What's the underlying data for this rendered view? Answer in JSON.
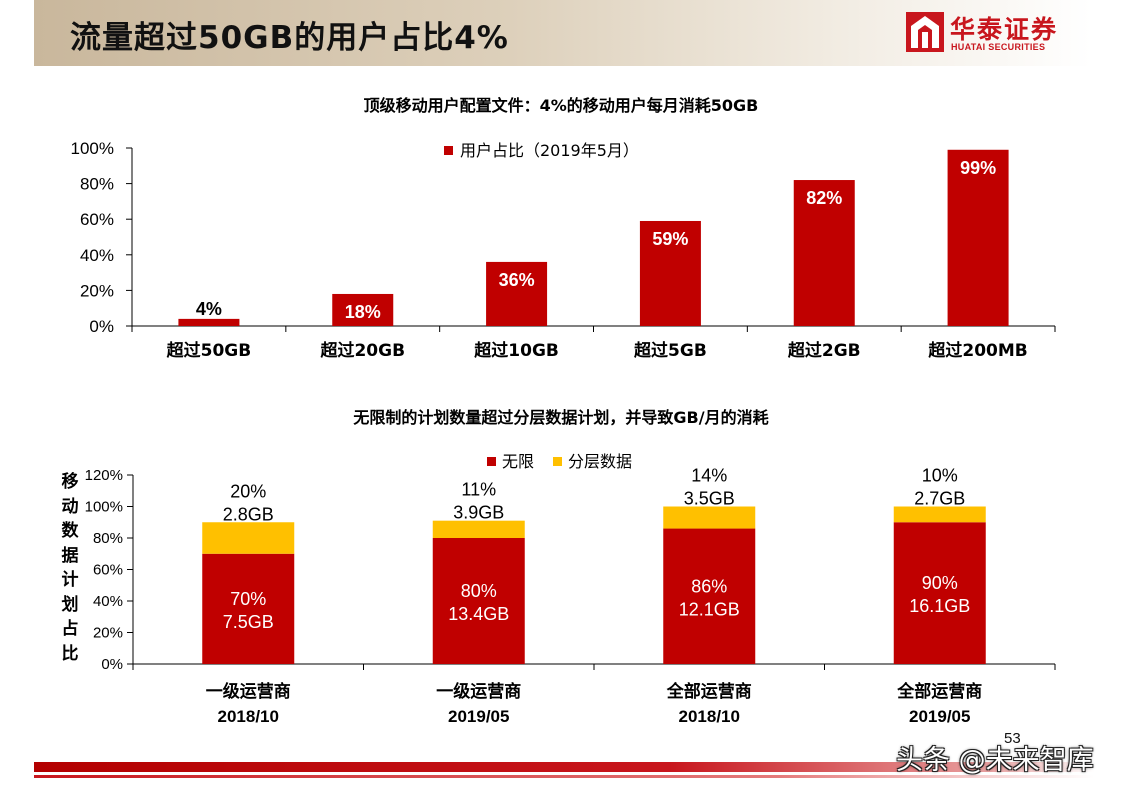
{
  "header": {
    "title": "流量超过50GB的用户占比4%"
  },
  "logo": {
    "name_cn": "华泰证券",
    "name_en": "HUATAI SECURITIES"
  },
  "colors": {
    "red": "#c00000",
    "yellow": "#ffc000",
    "brand": "#c8161d"
  },
  "chart_titles": {
    "top": "顶级移动用户配置文件：4%的移动用户每月消耗50GB",
    "bottom": "无限制的计划数量超过分层数据计划，并导致GB/月的消耗"
  },
  "bottom_ylabel": [
    "移",
    "动",
    "数",
    "据",
    "计",
    "划",
    "占",
    "比"
  ],
  "chart_data": [
    {
      "type": "bar",
      "categories": [
        "超过50GB",
        "超过20GB",
        "超过10GB",
        "超过5GB",
        "超过2GB",
        "超过200MB"
      ],
      "series": [
        {
          "name": "用户占比（2019年5月）",
          "values": [
            4,
            18,
            36,
            59,
            82,
            99
          ]
        }
      ],
      "data_labels": [
        "4%",
        "18%",
        "36%",
        "59%",
        "82%",
        "99%"
      ],
      "ylim": [
        0,
        100
      ],
      "yticks": [
        "0%",
        "20%",
        "40%",
        "60%",
        "80%",
        "100%"
      ],
      "legend": "top-center",
      "title": "顶级移动用户配置文件：4%的移动用户每月消耗50GB"
    },
    {
      "type": "bar",
      "stacked": true,
      "categories": [
        [
          "一级运营商",
          "2018/10"
        ],
        [
          "一级运营商",
          "2019/05"
        ],
        [
          "全部运营商",
          "2018/10"
        ],
        [
          "全部运营商",
          "2019/05"
        ]
      ],
      "series": [
        {
          "name": "无限",
          "values": [
            70,
            80,
            86,
            90
          ],
          "labels": [
            [
              "70%",
              "7.5GB"
            ],
            [
              "80%",
              "13.4GB"
            ],
            [
              "86%",
              "12.1GB"
            ],
            [
              "90%",
              "16.1GB"
            ]
          ]
        },
        {
          "name": "分层数据",
          "values": [
            20,
            11,
            14,
            10
          ],
          "labels": [
            [
              "20%",
              "2.8GB"
            ],
            [
              "11%",
              "3.9GB"
            ],
            [
              "14%",
              "3.5GB"
            ],
            [
              "10%",
              "2.7GB"
            ]
          ]
        }
      ],
      "ylim": [
        0,
        120
      ],
      "yticks": [
        "0%",
        "20%",
        "40%",
        "60%",
        "80%",
        "100%",
        "120%"
      ],
      "legend": "top-center",
      "title": "无限制的计划数量超过分层数据计划，并导致GB/月的消耗"
    }
  ],
  "footer": {
    "page_number": "53",
    "watermark": "头条 @未来智库"
  }
}
